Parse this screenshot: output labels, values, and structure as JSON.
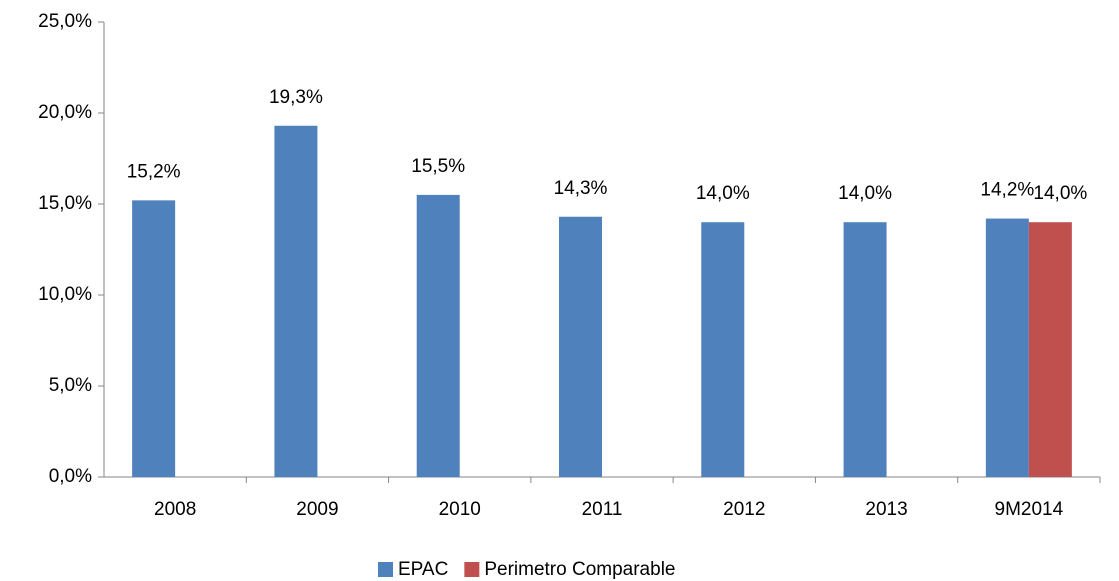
{
  "chart_data": {
    "type": "bar",
    "categories": [
      "2008",
      "2009",
      "2010",
      "2011",
      "2012",
      "2013",
      "9M2014"
    ],
    "series": [
      {
        "name": "EPAC",
        "color": "#4f81bd",
        "values": [
          15.2,
          19.3,
          15.5,
          14.3,
          14.0,
          14.0,
          14.2
        ],
        "value_labels": [
          "15,2%",
          "19,3%",
          "15,5%",
          "14,3%",
          "14,0%",
          "14,0%",
          "14,2%"
        ]
      },
      {
        "name": "Perimetro Comparable",
        "color": "#c0504d",
        "values": [
          null,
          null,
          null,
          null,
          null,
          null,
          14.0
        ],
        "value_labels": [
          null,
          null,
          null,
          null,
          null,
          null,
          "14,0%"
        ]
      }
    ],
    "ylim": [
      0,
      25
    ],
    "yticks": [
      {
        "value": 0,
        "label": "0,0%"
      },
      {
        "value": 5,
        "label": "5,0%"
      },
      {
        "value": 10,
        "label": "10,0%"
      },
      {
        "value": 15,
        "label": "15,0%"
      },
      {
        "value": 20,
        "label": "20,0%"
      },
      {
        "value": 25,
        "label": "25,0%"
      }
    ],
    "grid": false,
    "legend": "bottom"
  }
}
